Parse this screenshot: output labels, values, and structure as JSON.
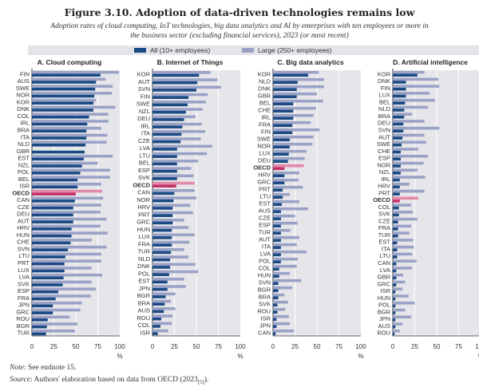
{
  "title": "Figure 3.10. Adoption of data-driven technologies remains low",
  "subtitle": "Adoption rates of cloud computing, IoT technologies, big data analytics and AI by enterprises with ten employees or more in the business sector (excluding financial services), 2023 (or most recent)",
  "note_label": "Note",
  "note_text": ": See endnote 15.",
  "source_label": "Source",
  "source_text": ": Authors' elaboration based on data from OECD (2023",
  "source_ref": "[5]",
  "source_end": ").",
  "colors": {
    "all": "#1b4a84",
    "large": "#9aa2c6",
    "oecd_all": "#c23068",
    "oecd_large": "#e28aa9",
    "plot_bg": "#e6e6ea"
  },
  "chart_data": [
    {
      "type": "bar",
      "orientation": "horizontal",
      "title": "A. Cloud computing",
      "xlabel": "%",
      "xlim": [
        0,
        100
      ],
      "xticks": [
        0,
        25,
        50,
        75,
        100
      ],
      "grid": true,
      "legend": {
        "position": "top",
        "entries": [
          "All (10+ employees)",
          "Large (250+ employees)"
        ]
      },
      "categories": [
        "FIN",
        "AUS",
        "SWE",
        "NOR",
        "KOR",
        "DNK",
        "COL",
        "IRL",
        "BRA",
        "ITA",
        "NLD",
        "GBR",
        "EST",
        "NZL",
        "POL",
        "BEL",
        "ISR",
        "OECD",
        "CAN",
        "CZE",
        "DEU",
        "AUT",
        "HRV",
        "HUN",
        "CHE",
        "SVN",
        "LTU",
        "PRT",
        "LUX",
        "LVA",
        "SVK",
        "ESP",
        "FRA",
        "JPN",
        "GRC",
        "ROU",
        "BGR",
        "TUR"
      ],
      "series": [
        {
          "name": "All (10+ employees)",
          "values": [
            78,
            73,
            72,
            71,
            70,
            70,
            65,
            63,
            62,
            62,
            61,
            60,
            59,
            57,
            55,
            52,
            52,
            50,
            49,
            47,
            47,
            47,
            45,
            45,
            44,
            41,
            38,
            37,
            37,
            36,
            35,
            30,
            27,
            24,
            24,
            18,
            17,
            16
          ]
        },
        {
          "name": "Large (250+ employees)",
          "values": [
            99,
            84,
            92,
            91,
            73,
            95,
            87,
            87,
            79,
            86,
            85,
            null,
            92,
            75,
            89,
            89,
            79,
            80,
            81,
            79,
            78,
            85,
            78,
            86,
            68,
            85,
            79,
            79,
            68,
            80,
            68,
            73,
            67,
            57,
            55,
            43,
            52,
            49
          ]
        }
      ]
    },
    {
      "type": "bar",
      "orientation": "horizontal",
      "title": "B. Internet of Things",
      "xlabel": "%",
      "xlim": [
        0,
        100
      ],
      "xticks": [
        0,
        25,
        50,
        75,
        100
      ],
      "grid": true,
      "categories": [
        "KOR",
        "AUT",
        "SVN",
        "FIN",
        "SWE",
        "NZL",
        "DEU",
        "IRL",
        "ITA",
        "CZE",
        "LVA",
        "LTU",
        "BEL",
        "ESP",
        "SVK",
        "OECD",
        "CAN",
        "NOR",
        "HRV",
        "PRT",
        "GRC",
        "HUN",
        "LUX",
        "FRA",
        "TUR",
        "NLD",
        "DNK",
        "POL",
        "EST",
        "JPN",
        "BGR",
        "BRA",
        "AUS",
        "ROU",
        "COL",
        "ISR"
      ],
      "series": [
        {
          "name": "All (10+ employees)",
          "values": [
            53,
            51,
            50,
            41,
            40,
            38,
            36,
            34,
            33,
            32,
            28,
            28,
            28,
            28,
            28,
            27,
            25,
            24,
            23,
            23,
            23,
            22,
            22,
            22,
            21,
            20,
            20,
            19,
            17,
            17,
            15,
            14,
            13,
            10,
            9,
            6
          ]
        },
        {
          "name": "Large (250+ employees)",
          "values": [
            66,
            74,
            78,
            63,
            61,
            57,
            49,
            56,
            60,
            55,
            68,
            62,
            52,
            44,
            47,
            48,
            48,
            50,
            43,
            46,
            36,
            41,
            48,
            42,
            36,
            41,
            49,
            52,
            36,
            38,
            26,
            21,
            26,
            23,
            22,
            18
          ]
        }
      ]
    },
    {
      "type": "bar",
      "orientation": "horizontal",
      "title": "C. Big data analytics",
      "xlabel": "%",
      "xlim": [
        0,
        100
      ],
      "xticks": [
        0,
        25,
        50,
        75,
        100
      ],
      "grid": true,
      "categories": [
        "KOR",
        "NLD",
        "DNK",
        "GBR",
        "BEL",
        "CHE",
        "IRL",
        "FRA",
        "FIN",
        "SWE",
        "NOR",
        "LUX",
        "DEU",
        "OECD",
        "HRV",
        "GRC",
        "PRT",
        "LTU",
        "EST",
        "AUS",
        "CZE",
        "ESP",
        "TUR",
        "AUT",
        "ITA",
        "LVA",
        "POL",
        "COL",
        "HUN",
        "SVN",
        "BGR",
        "BRA",
        "SVK",
        "ROU",
        "ISR",
        "JPN",
        "CAN"
      ],
      "series": [
        {
          "name": "All (10+ employees)",
          "values": [
            40,
            28,
            27,
            27,
            23,
            23,
            23,
            22,
            22,
            19,
            19,
            18,
            17,
            13,
            13,
            13,
            11,
            11,
            10,
            9,
            9,
            9,
            9,
            9,
            9,
            9,
            9,
            7,
            7,
            6,
            6,
            6,
            5,
            5,
            4,
            4,
            3
          ]
        },
        {
          "name": "Large (250+ employees)",
          "values": [
            52,
            58,
            58,
            50,
            57,
            49,
            46,
            43,
            53,
            46,
            45,
            38,
            36,
            35,
            30,
            29,
            34,
            19,
            30,
            40,
            25,
            28,
            20,
            30,
            27,
            38,
            28,
            27,
            19,
            32,
            22,
            13,
            17,
            14,
            18,
            19,
            24
          ]
        }
      ]
    },
    {
      "type": "bar",
      "orientation": "horizontal",
      "title": "D. Artificial intelligence",
      "xlabel": "%",
      "xlim": [
        0,
        100
      ],
      "xticks": [
        0,
        25,
        50,
        75,
        100
      ],
      "grid": true,
      "categories": [
        "KOR",
        "DNK",
        "FIN",
        "LUX",
        "BEL",
        "NLD",
        "BRA",
        "DEU",
        "SVN",
        "AUT",
        "SWE",
        "CHE",
        "ESP",
        "NOR",
        "NZL",
        "IRL",
        "HRV",
        "PRT",
        "OECD",
        "COL",
        "SVK",
        "CZE",
        "FRA",
        "TUR",
        "EST",
        "ITA",
        "LTU",
        "CAN",
        "LVA",
        "GBR",
        "GRC",
        "ISR",
        "HUN",
        "POL",
        "BGR",
        "JPN",
        "AUS",
        "ROU"
      ],
      "series": [
        {
          "name": "All (10+ employees)",
          "values": [
            28,
            15,
            15,
            15,
            14,
            13,
            13,
            12,
            12,
            11,
            10,
            9,
            9,
            9,
            9,
            8,
            8,
            8,
            8,
            7,
            7,
            6,
            6,
            6,
            5,
            5,
            5,
            4,
            4,
            4,
            4,
            3,
            3,
            3,
            3,
            3,
            3,
            2
          ]
        },
        {
          "name": "Large (250+ employees)",
          "values": [
            36,
            52,
            53,
            42,
            48,
            40,
            22,
            36,
            53,
            36,
            38,
            29,
            40,
            35,
            28,
            37,
            19,
            36,
            29,
            21,
            23,
            28,
            21,
            19,
            23,
            24,
            22,
            27,
            22,
            12,
            14,
            11,
            18,
            25,
            14,
            21,
            11,
            8
          ]
        }
      ]
    }
  ]
}
